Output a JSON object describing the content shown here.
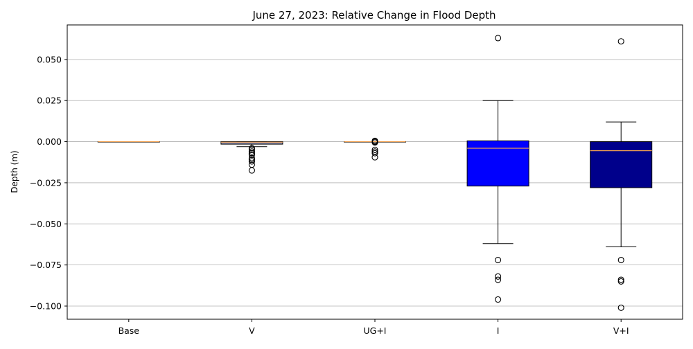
{
  "chart_data": {
    "type": "box",
    "title": "June 27, 2023: Relative Change in Flood Depth",
    "xlabel": "",
    "ylabel": "Depth (m)",
    "ylim": [
      -0.108,
      0.071
    ],
    "y_ticks": [
      0.05,
      0.025,
      0.0,
      -0.025,
      -0.05,
      -0.075,
      -0.1
    ],
    "y_tick_labels": [
      "0.050",
      "0.025",
      "0.000",
      "−0.025",
      "−0.050",
      "−0.075",
      "−0.100"
    ],
    "grid": "y",
    "median_color": "#f0a050",
    "categories": [
      {
        "label": "Base",
        "q1": 0.0,
        "median": 0.0,
        "q3": 0.0,
        "whisker_low": 0.0,
        "whisker_high": 0.0,
        "fill": "#ffffff",
        "outliers": []
      },
      {
        "label": "V",
        "q1": -0.0015,
        "median": -0.0003,
        "q3": 0.0,
        "whisker_low": -0.003,
        "whisker_high": 0.0,
        "fill": "#8b8fb3",
        "outliers": [
          -0.004,
          -0.005,
          -0.006,
          -0.007,
          -0.008,
          -0.01,
          -0.011,
          -0.012,
          -0.014,
          -0.0175
        ]
      },
      {
        "label": "UG+I",
        "q1": 0.0,
        "median": 0.0,
        "q3": 0.0,
        "whisker_low": 0.0,
        "whisker_high": 0.0,
        "fill": "#ffffff",
        "outliers": [
          0.0005,
          0.0,
          -0.0005,
          -0.005,
          -0.006,
          -0.007,
          -0.0095
        ]
      },
      {
        "label": "I",
        "q1": -0.027,
        "median": -0.004,
        "q3": 0.0005,
        "whisker_low": -0.062,
        "whisker_high": 0.025,
        "fill": "#0000ff",
        "outliers": [
          0.063,
          -0.072,
          -0.082,
          -0.084,
          -0.096
        ]
      },
      {
        "label": "V+I",
        "q1": -0.028,
        "median": -0.0055,
        "q3": 0.0,
        "whisker_low": -0.064,
        "whisker_high": 0.012,
        "fill": "#00008b",
        "outliers": [
          0.061,
          -0.072,
          -0.084,
          -0.085,
          -0.101
        ]
      }
    ]
  }
}
